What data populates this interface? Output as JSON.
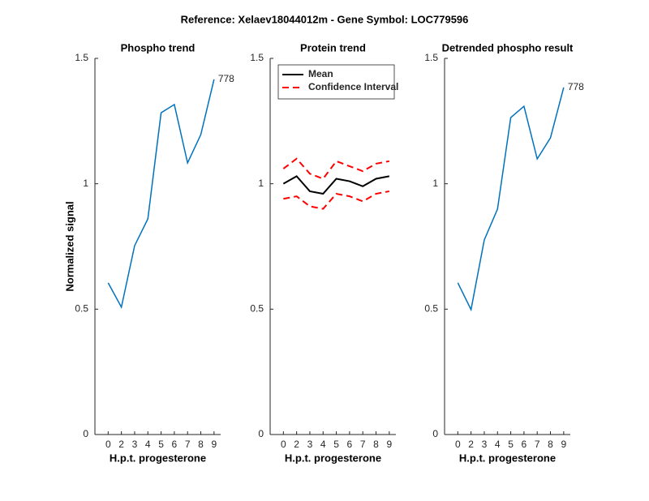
{
  "title": "Reference:  Xelaev18044012m - Gene Symbol:  LOC779596",
  "chart_data": [
    {
      "type": "line",
      "title": "Phospho trend",
      "x_label": "H.p.t. progesterone",
      "y_label": "Normalized signal",
      "categories": [
        "0",
        "2",
        "3",
        "4",
        "5",
        "6",
        "7",
        "8",
        "9"
      ],
      "ylim": [
        0,
        1.5
      ],
      "yticks": [
        0,
        0.5,
        1,
        1.5
      ],
      "series": [
        {
          "color": "#0072bd",
          "values": [
            0.605,
            0.508,
            0.753,
            0.86,
            1.283,
            1.316,
            1.083,
            1.196,
            1.416
          ],
          "end_label": "778"
        }
      ]
    },
    {
      "type": "line",
      "title": "Protein trend",
      "x_label": "H.p.t. progesterone",
      "categories": [
        "0",
        "2",
        "3",
        "4",
        "5",
        "6",
        "7",
        "8",
        "9"
      ],
      "ylim": [
        0,
        1.5
      ],
      "yticks": [
        0,
        0.5,
        1,
        1.5
      ],
      "legend": "upper left",
      "series": [
        {
          "name": "Mean",
          "color": "#000000",
          "style": "solid",
          "values": [
            1.0,
            1.03,
            0.97,
            0.96,
            1.02,
            1.01,
            0.99,
            1.02,
            1.03
          ]
        },
        {
          "name": "Confidence Interval",
          "color": "#ff0000",
          "style": "dashed",
          "upper": [
            1.06,
            1.1,
            1.04,
            1.02,
            1.09,
            1.07,
            1.05,
            1.08,
            1.09
          ],
          "lower": [
            0.94,
            0.95,
            0.91,
            0.9,
            0.96,
            0.95,
            0.93,
            0.96,
            0.97
          ]
        }
      ]
    },
    {
      "type": "line",
      "title": "Detrended phospho result",
      "x_label": "H.p.t. progesterone",
      "categories": [
        "0",
        "2",
        "3",
        "4",
        "5",
        "6",
        "7",
        "8",
        "9"
      ],
      "ylim": [
        0,
        1.5
      ],
      "yticks": [
        0,
        0.5,
        1,
        1.5
      ],
      "series": [
        {
          "color": "#0072bd",
          "values": [
            0.605,
            0.498,
            0.776,
            0.899,
            1.264,
            1.309,
            1.099,
            1.183,
            1.384
          ],
          "end_label": "778"
        }
      ]
    }
  ]
}
